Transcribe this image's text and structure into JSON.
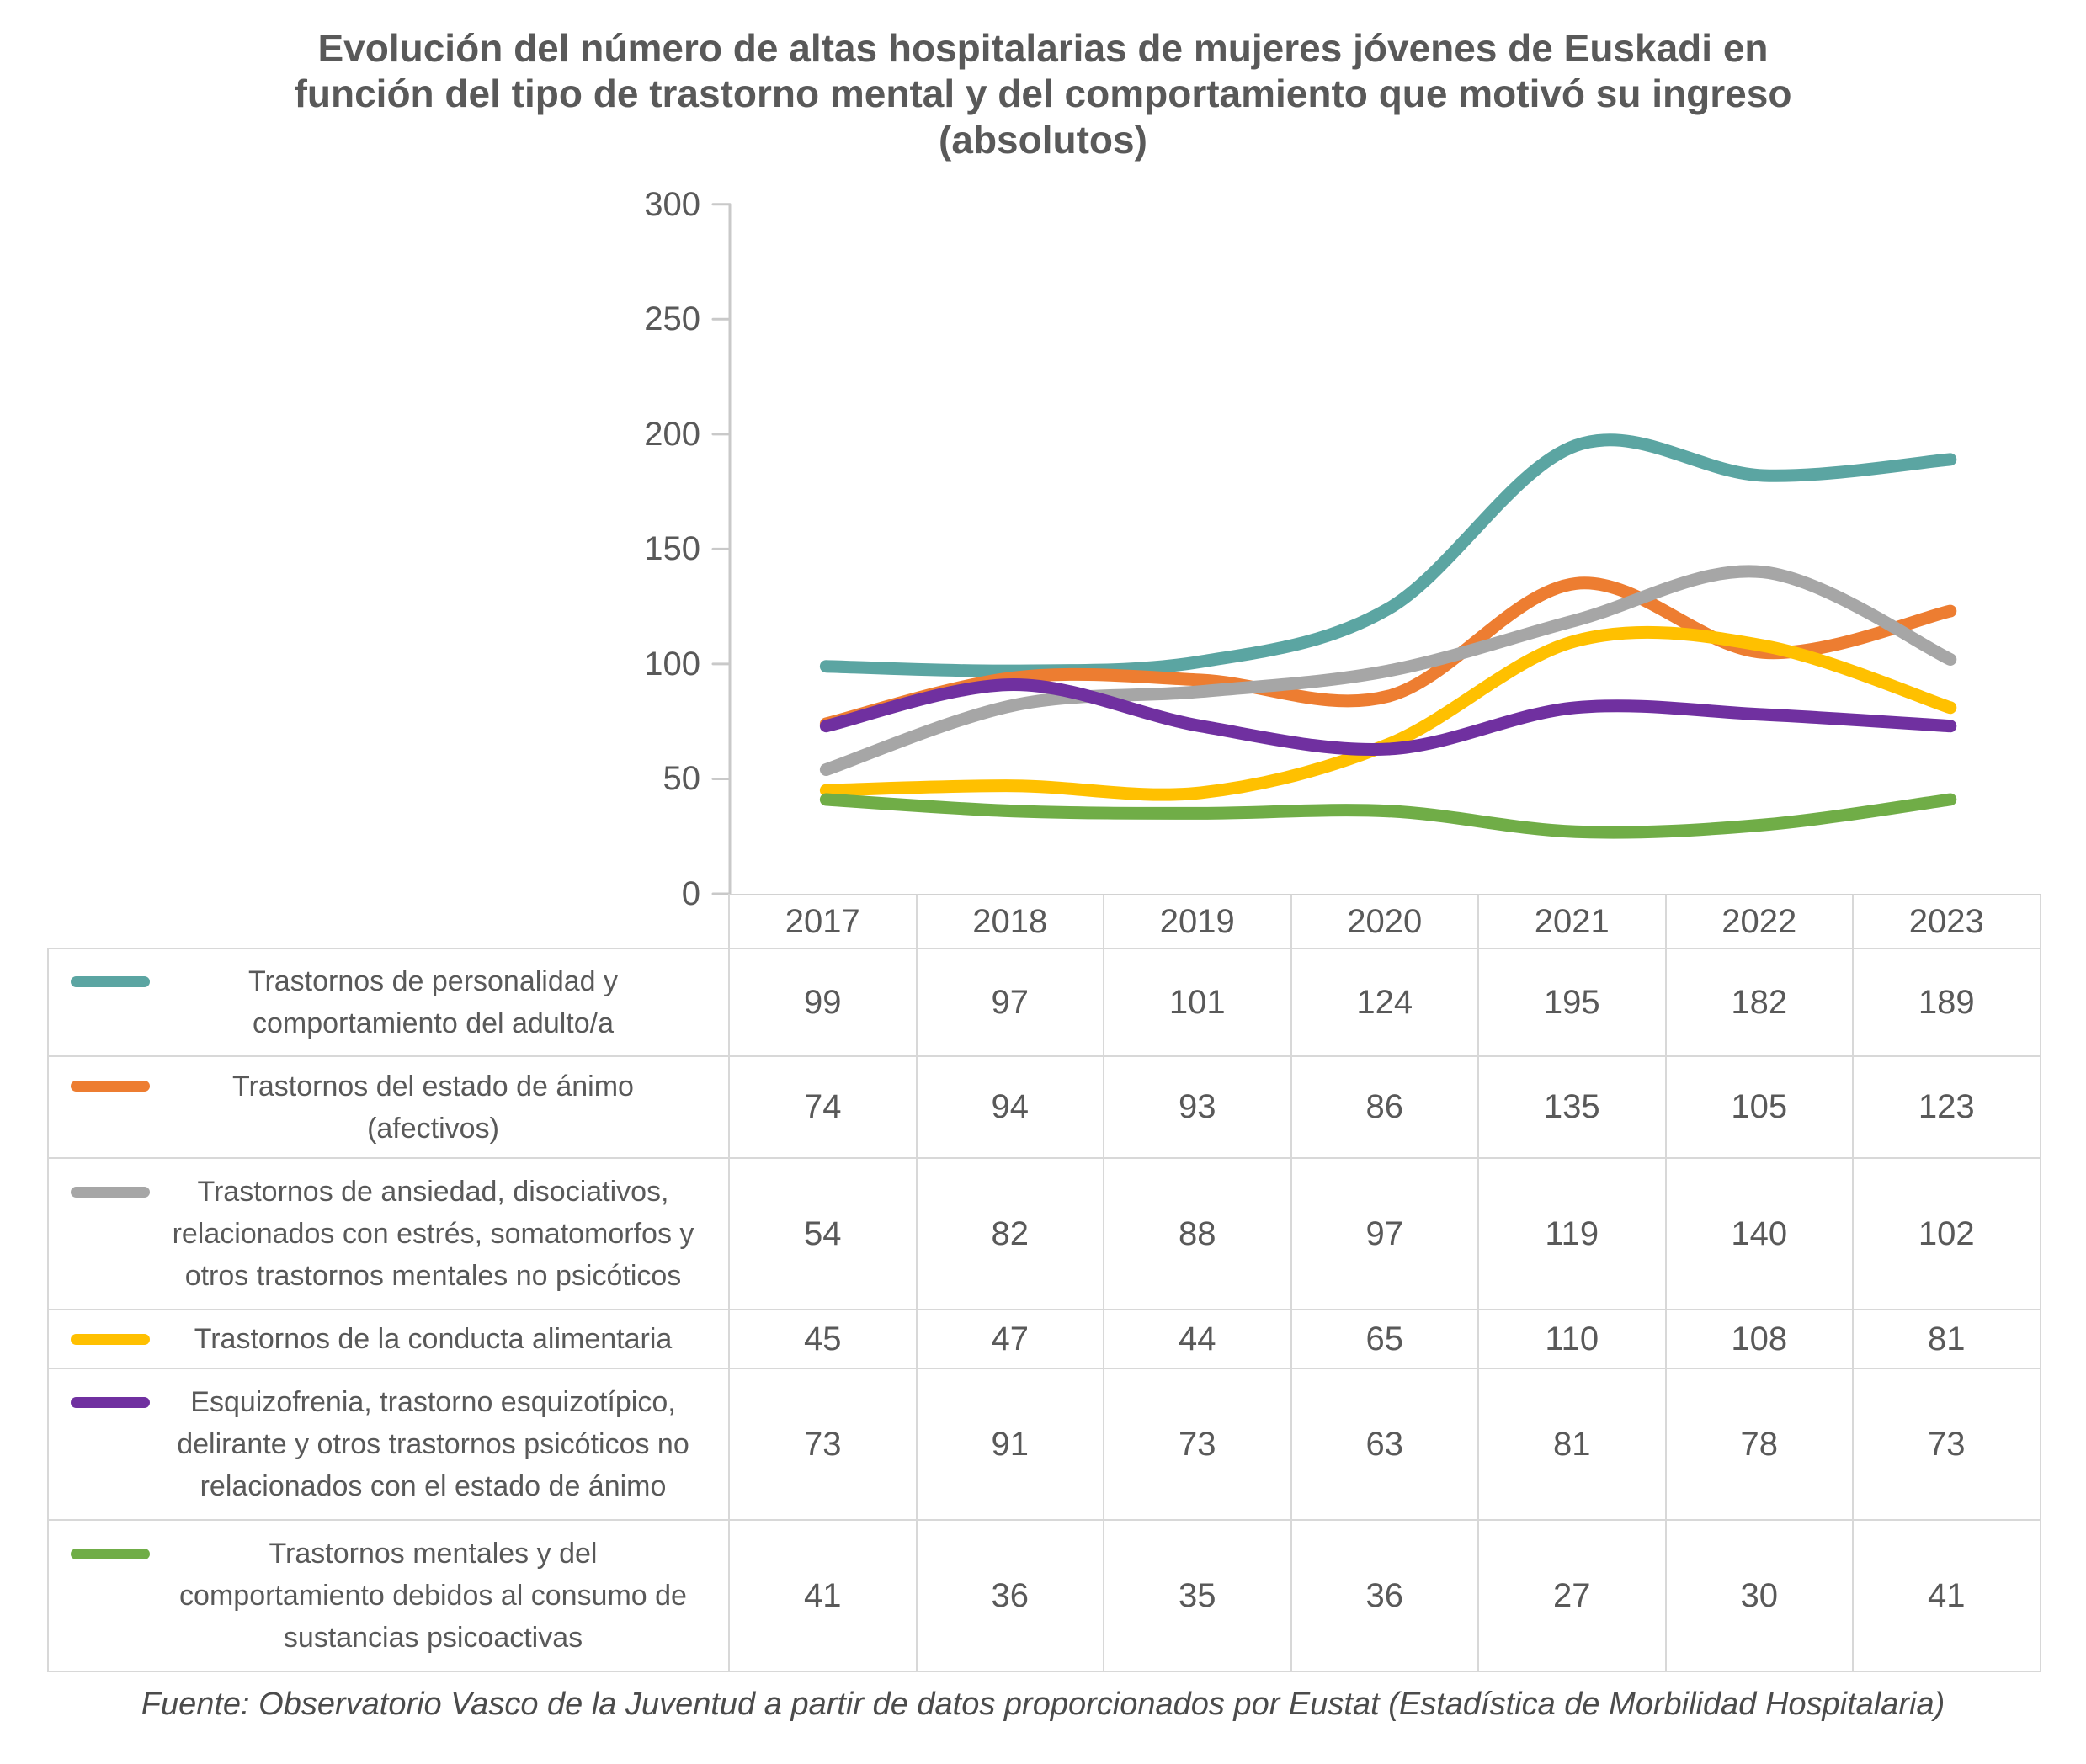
{
  "title_lines": [
    "Evolución del número de altas hospitalarias de mujeres jóvenes de Euskadi en",
    "función del tipo de trastorno mental y del comportamiento que motivó su ingreso",
    "(absolutos)"
  ],
  "source": "Fuente: Observatorio Vasco de la Juventud a partir de datos proporcionados por Eustat (Estadística de Morbilidad Hospitalaria)",
  "text_color": "#595959",
  "chart_data": {
    "type": "line",
    "line_style": "smooth",
    "title": "Evolución del número de altas hospitalarias de mujeres jóvenes de Euskadi en función del tipo de trastorno mental y del comportamiento que motivó su ingreso (absolutos)",
    "xlabel": "",
    "ylabel": "",
    "ylim": [
      0,
      300
    ],
    "yticks": [
      0,
      50,
      100,
      150,
      200,
      250,
      300
    ],
    "grid": false,
    "legend_position": "table-left",
    "categories": [
      "2017",
      "2018",
      "2019",
      "2020",
      "2021",
      "2022",
      "2023"
    ],
    "series": [
      {
        "name": "Trastornos de personalidad y comportamiento del adulto/a",
        "label_lines": [
          "Trastornos de personalidad y",
          "comportamiento del adulto/a"
        ],
        "color": "#5BA5A2",
        "values": [
          99,
          97,
          101,
          124,
          195,
          182,
          189
        ]
      },
      {
        "name": "Trastornos del estado de ánimo (afectivos)",
        "label_lines": [
          "Trastornos del estado de ánimo",
          "(afectivos)"
        ],
        "color": "#ED7D31",
        "values": [
          74,
          94,
          93,
          86,
          135,
          105,
          123
        ]
      },
      {
        "name": "Trastornos de ansiedad, disociativos, relacionados con estrés, somatomorfos y otros trastornos mentales no psicóticos",
        "label_lines": [
          "Trastornos de ansiedad, disociativos,",
          "relacionados con estrés, somatomorfos y",
          "otros trastornos mentales no psicóticos"
        ],
        "color": "#A6A6A6",
        "values": [
          54,
          82,
          88,
          97,
          119,
          140,
          102
        ]
      },
      {
        "name": "Trastornos de la conducta alimentaria",
        "label_lines": [
          "Trastornos de la conducta alimentaria"
        ],
        "color": "#FFC000",
        "values": [
          45,
          47,
          44,
          65,
          110,
          108,
          81
        ]
      },
      {
        "name": "Esquizofrenia, trastorno esquizotípico, delirante y otros trastornos psicóticos no relacionados con el estado de ánimo",
        "label_lines": [
          "Esquizofrenia, trastorno esquizotípico,",
          "delirante y otros trastornos psicóticos no",
          "relacionados con el estado de ánimo"
        ],
        "color": "#7030A0",
        "values": [
          73,
          91,
          73,
          63,
          81,
          78,
          73
        ]
      },
      {
        "name": "Trastornos mentales y del comportamiento debidos al consumo de sustancias psicoactivas",
        "label_lines": [
          "Trastornos mentales y del",
          "comportamiento debidos al consumo de",
          "sustancias psicoactivas"
        ],
        "color": "#70AD47",
        "values": [
          41,
          36,
          35,
          36,
          27,
          30,
          41
        ]
      }
    ]
  }
}
